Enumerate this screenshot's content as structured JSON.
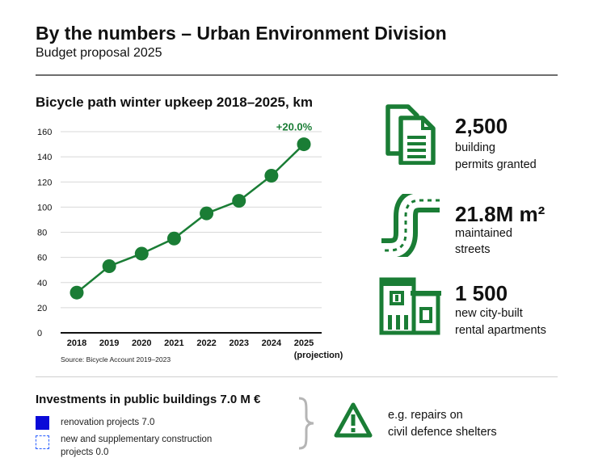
{
  "header": {
    "title": "By the numbers – Urban Environment Division",
    "subtitle": "Budget proposal 2025"
  },
  "chart_data": {
    "type": "line",
    "title": "Bicycle path winter upkeep 2018–2025, km",
    "categories": [
      "2018",
      "2019",
      "2020",
      "2021",
      "2022",
      "2023",
      "2024",
      "2025"
    ],
    "category_sublabels": [
      "",
      "",
      "",
      "",
      "",
      "",
      "",
      "(projection)"
    ],
    "values": [
      32,
      53,
      63,
      75,
      95,
      105,
      125,
      150
    ],
    "ylim": [
      0,
      160
    ],
    "yticks": [
      0,
      20,
      40,
      60,
      80,
      100,
      120,
      140,
      160
    ],
    "grid": true,
    "annotation": "+20.0%",
    "source": "Source: Bicycle Account 2019–2023",
    "color": "#1a7d35"
  },
  "stats": [
    {
      "icon": "documents-icon",
      "value": "2,500",
      "lines": [
        "building",
        "permits granted"
      ]
    },
    {
      "icon": "road-icon",
      "value": "21.8M m²",
      "lines": [
        "maintained",
        "streets"
      ]
    },
    {
      "icon": "building-icon",
      "value": "1 500",
      "lines": [
        "new city-built",
        "rental apartments"
      ]
    }
  ],
  "investments": {
    "title": "Investments in public buildings 7.0 M €",
    "legend": [
      {
        "label": "renovation projects 7.0",
        "color": "#0a0ad8"
      },
      {
        "label_line1": "new and supplementary construction",
        "label_line2": "projects  0.0",
        "color": "#2b60ff"
      }
    ],
    "note_line1": "e.g. repairs on",
    "note_line2": "civil defence shelters",
    "note_icon": "warning-icon"
  }
}
